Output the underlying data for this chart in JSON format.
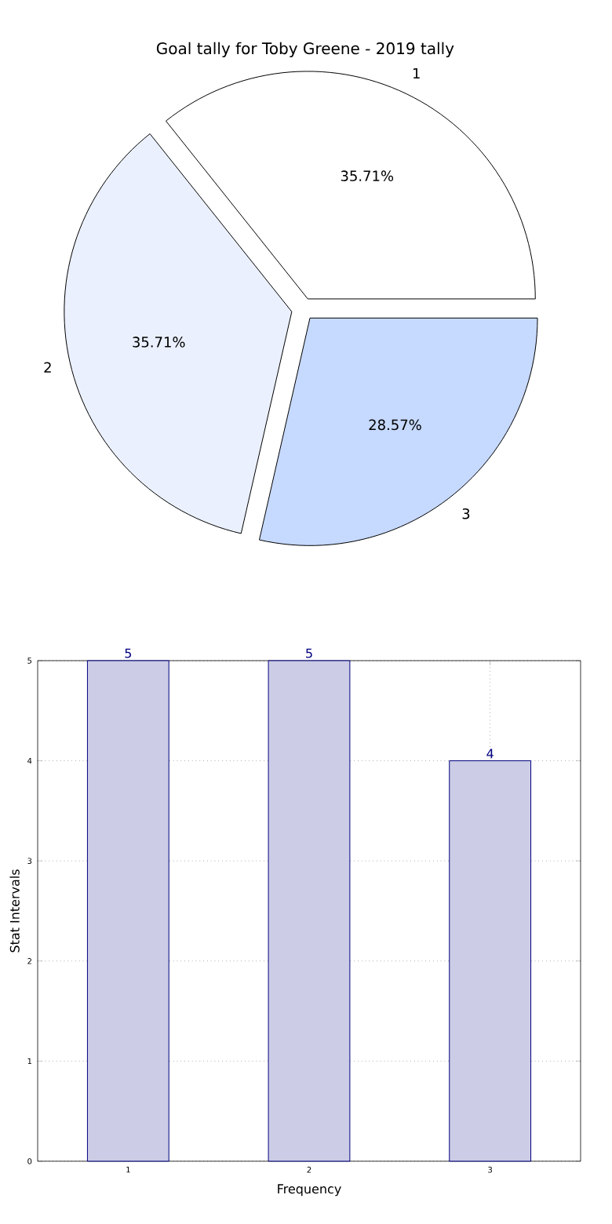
{
  "chart_data": [
    {
      "type": "pie",
      "title": "Goal tally for Toby Greene - 2019 tally",
      "categories": [
        "1",
        "2",
        "3"
      ],
      "values": [
        35.71,
        35.71,
        28.57
      ],
      "colors": [
        "#ffffff",
        "#eaf0fe",
        "#c6d9ff"
      ],
      "value_labels": [
        "35.71%",
        "35.71%",
        "28.57%"
      ]
    },
    {
      "type": "bar",
      "categories": [
        "1",
        "2",
        "3"
      ],
      "values": [
        5,
        5,
        4
      ],
      "color": "#cccce6",
      "xlabel": "Frequency",
      "ylabel": "Stat Intervals",
      "ylim": [
        0,
        5
      ],
      "yticks": [
        0,
        1,
        2,
        3,
        4,
        5
      ],
      "grid": true,
      "data_labels": true
    }
  ]
}
